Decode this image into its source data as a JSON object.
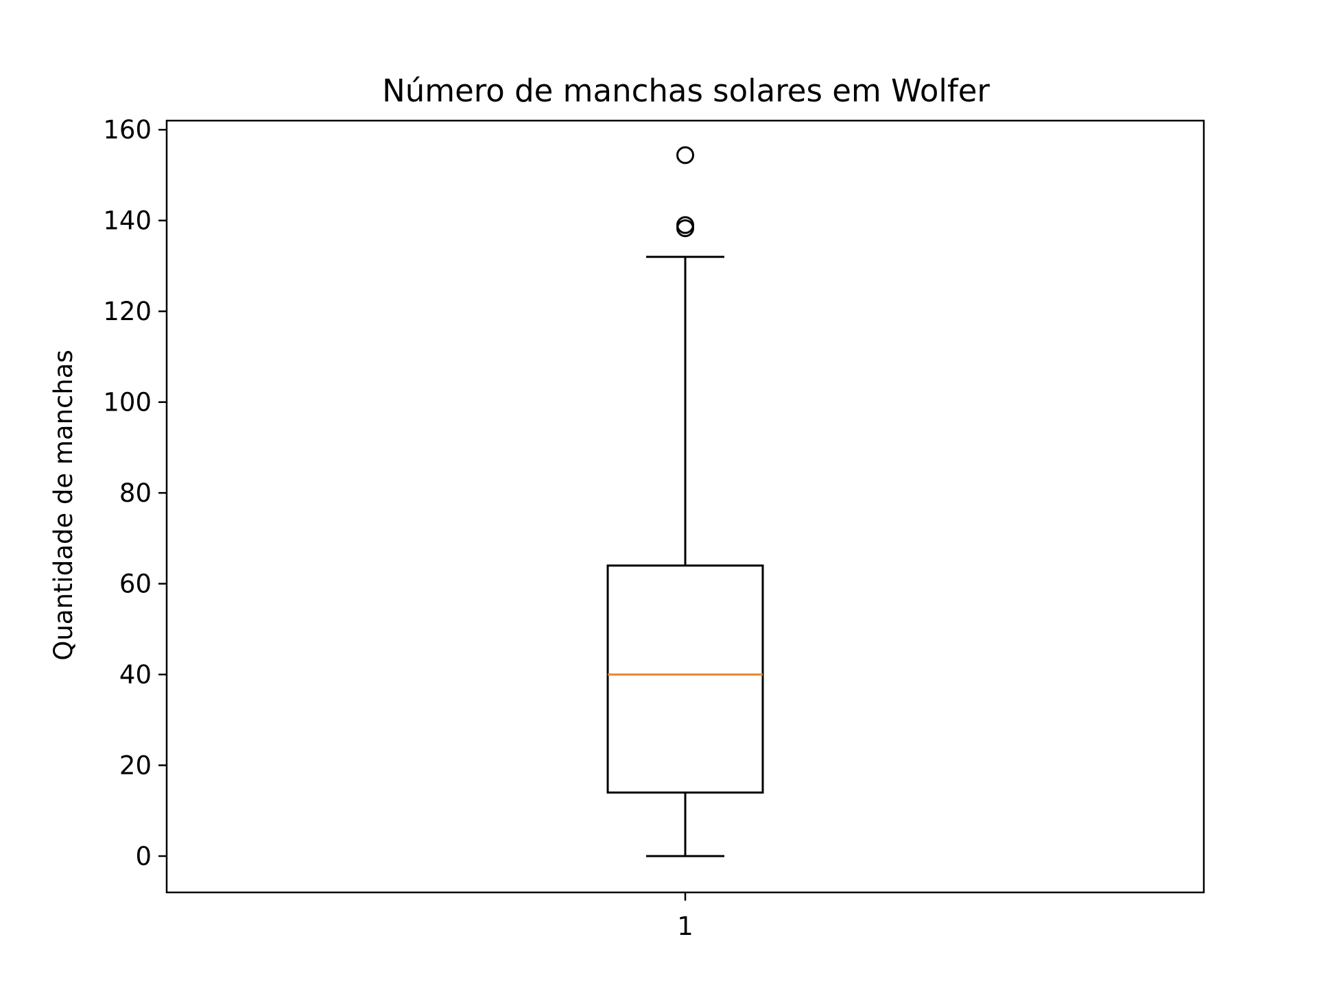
{
  "chart_data": {
    "type": "boxplot",
    "title": "Número de manchas solares em Wolfer",
    "xlabel": "",
    "ylabel": "Quantidade de manchas",
    "categories": [
      "1"
    ],
    "ylim": [
      -8,
      162
    ],
    "yticks": [
      0,
      20,
      40,
      60,
      80,
      100,
      120,
      140,
      160
    ],
    "grid": false,
    "boxes": [
      {
        "category": "1",
        "whisker_low": 0,
        "q1": 14,
        "median": 40,
        "q3": 64,
        "whisker_high": 132,
        "outliers": [
          154.4,
          139.0,
          138.3
        ]
      }
    ],
    "colors": {
      "box": "#000000",
      "median": "#e5862d",
      "axes": "#000000"
    }
  }
}
